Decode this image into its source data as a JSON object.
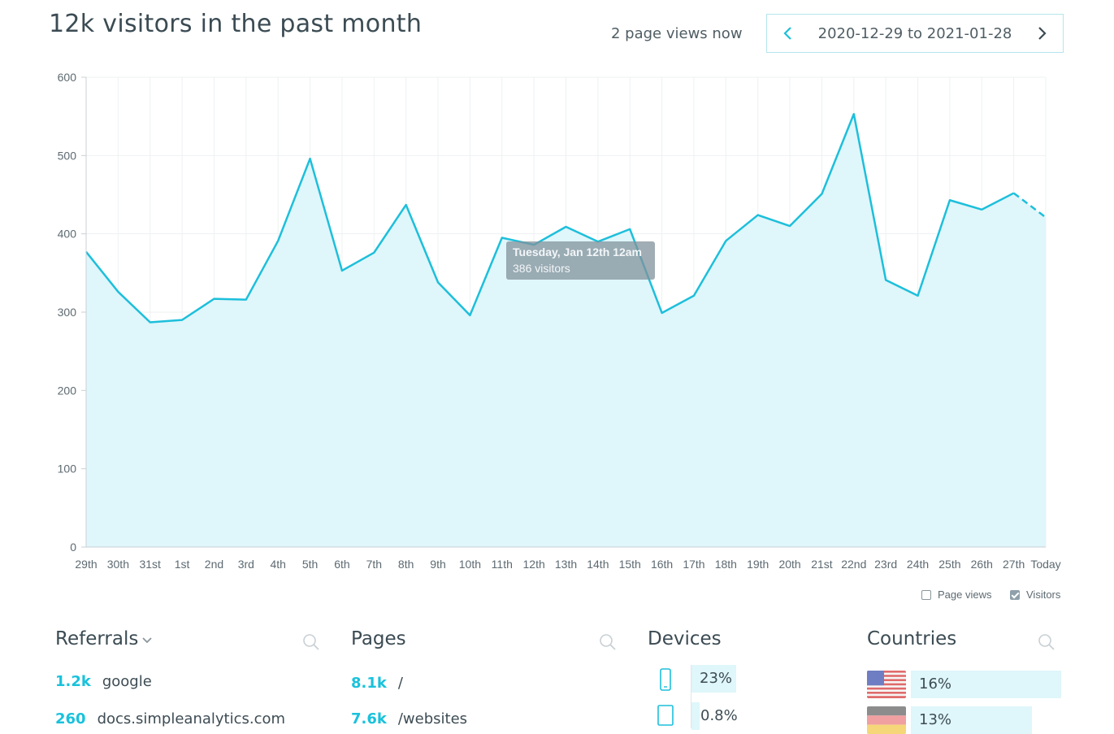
{
  "header": {
    "title": "12k visitors in the past month",
    "live_views": "2 page views now",
    "date_range": "2020-12-29 to 2021-01-28"
  },
  "chart_data": {
    "type": "area",
    "categories": [
      "29th",
      "30th",
      "31st",
      "1st",
      "2nd",
      "3rd",
      "4th",
      "5th",
      "6th",
      "7th",
      "8th",
      "9th",
      "10th",
      "11th",
      "12th",
      "13th",
      "14th",
      "15th",
      "16th",
      "17th",
      "18th",
      "19th",
      "20th",
      "21st",
      "22nd",
      "23rd",
      "24th",
      "25th",
      "26th",
      "27th",
      "Today"
    ],
    "series": [
      {
        "name": "Visitors",
        "values": [
          377,
          326,
          287,
          290,
          317,
          316,
          391,
          496,
          353,
          376,
          437,
          338,
          296,
          395,
          386,
          409,
          390,
          406,
          299,
          321,
          391,
          424,
          410,
          451,
          553,
          341,
          321,
          443,
          431,
          452,
          421
        ]
      }
    ],
    "ylim": [
      0,
      600
    ],
    "yticks": [
      0,
      100,
      200,
      300,
      400,
      500,
      600
    ],
    "grid": true,
    "last_segment_dashed": true,
    "colors": {
      "line": "#1dbfdb",
      "fill": "#dff6fa"
    },
    "tooltip": {
      "title": "Tuesday, Jan 12th 12am",
      "value": "386 visitors"
    },
    "legend": [
      {
        "label": "Page views",
        "checked": false
      },
      {
        "label": "Visitors",
        "checked": true
      }
    ]
  },
  "referrals": {
    "title": "Referrals",
    "items": [
      {
        "count": "1.2k",
        "label": "google"
      },
      {
        "count": "260",
        "label": "docs.simpleanalytics.com"
      }
    ]
  },
  "pages": {
    "title": "Pages",
    "items": [
      {
        "count": "8.1k",
        "label": "/"
      },
      {
        "count": "7.6k",
        "label": "/websites"
      }
    ]
  },
  "devices": {
    "title": "Devices",
    "items": [
      {
        "icon": "mobile-phone-icon",
        "percent": "23%",
        "value": 23
      },
      {
        "icon": "tablet-icon",
        "percent": "0.8%",
        "value": 0.8
      }
    ]
  },
  "countries": {
    "title": "Countries",
    "items": [
      {
        "icon": "us-flag-icon",
        "percent": "16%",
        "value": 16
      },
      {
        "icon": "germany-flag-icon",
        "percent": "13%",
        "value": 13
      }
    ]
  }
}
